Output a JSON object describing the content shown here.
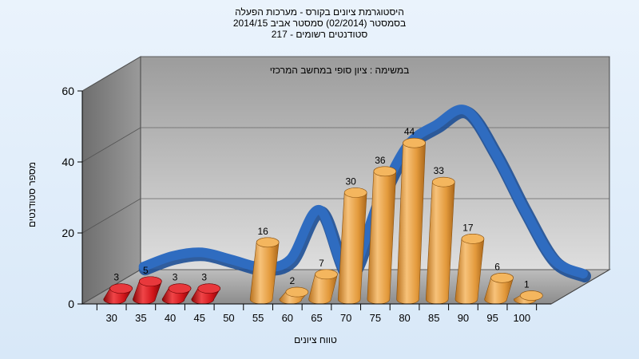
{
  "chart_data": {
    "type": "bar",
    "title_lines": [
      "היסטוגרמת ציונים בקורס - מערכות הפעלה",
      "בסמסטר  (02/2014)  סמסטר אביב 2014/15",
      "217 - סטודנטים רשומים"
    ],
    "subtitle": "במשימה : ציון סופי במחשב המרכזי",
    "xlabel": "טווח ציונים",
    "ylabel": "מספר סטודנטים",
    "categories": [
      "30",
      "35",
      "40",
      "45",
      "50",
      "55",
      "60",
      "65",
      "70",
      "75",
      "80",
      "85",
      "90",
      "95",
      "100"
    ],
    "values": [
      3,
      5,
      3,
      3,
      null,
      16,
      2,
      7,
      30,
      36,
      44,
      33,
      17,
      6,
      1
    ],
    "bar_colors": [
      "#d0151a",
      "#d0151a",
      "#d0151a",
      "#d0151a",
      null,
      "#e8a04a",
      "#e8a04a",
      "#e8a04a",
      "#e8a04a",
      "#e8a04a",
      "#e8a04a",
      "#e8a04a",
      "#e8a04a",
      "#e8a04a",
      "#e8a04a"
    ],
    "ylim": [
      0,
      60
    ],
    "yticks": [
      0,
      20,
      40,
      60
    ],
    "grid": true,
    "trend_curve": {
      "color": "#2f6cc0",
      "values": [
        4,
        7,
        8,
        6,
        4,
        6,
        20,
        2,
        22,
        38,
        44,
        48,
        36,
        20,
        6
      ]
    },
    "colors": {
      "fail_bar": "#d0151a",
      "pass_bar": "#e8a04a",
      "curve": "#2f6cc0",
      "back_wall": "#c0c0c0",
      "side_wall": "#8a8a8a",
      "floor": "#9a9a9a"
    }
  }
}
